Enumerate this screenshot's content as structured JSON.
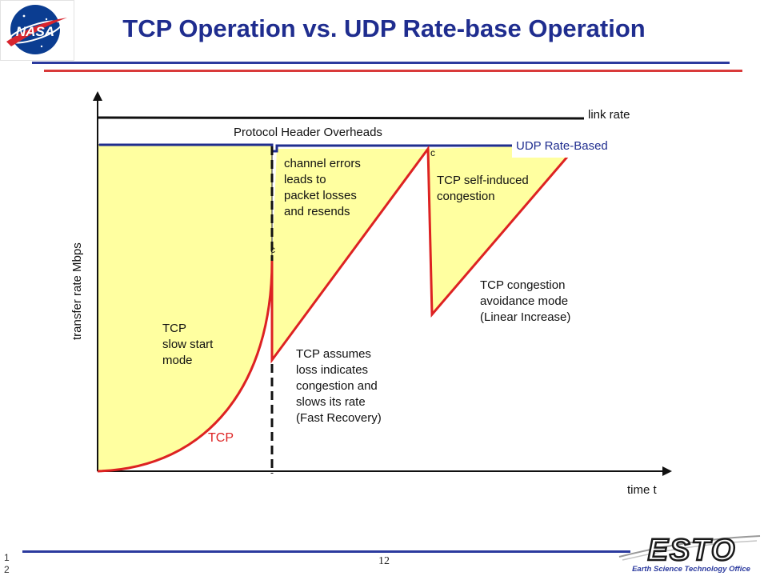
{
  "title": "TCP Operation vs. UDP Rate-base Operation",
  "labels": {
    "link_rate": "link rate",
    "header_overheads": "Protocol Header Overheads",
    "udp": "UDP Rate-Based",
    "channel_errors": [
      "channel errors",
      "leads to",
      "packet losses",
      "and resends"
    ],
    "self_induced": [
      "TCP self-induced",
      "congestion"
    ],
    "congestion_avoidance": [
      "TCP congestion",
      "avoidance mode",
      "(Linear Increase)"
    ],
    "slow_start": [
      "TCP",
      "slow start",
      "mode"
    ],
    "fast_recovery": [
      "TCP assumes",
      "loss indicates",
      "congestion and",
      "slows its rate",
      "(Fast Recovery)"
    ],
    "tcp": "TCP",
    "marker1": "c",
    "marker2": "c",
    "x_axis": "time t",
    "y_axis": "transfer rate Mbps"
  },
  "footer": {
    "page_number": "12",
    "slide_number": [
      "1",
      "2"
    ],
    "esto_logo": "ESTO",
    "esto_tagline": "Earth Science Technology Office"
  },
  "logos": {
    "nasa": "NASA"
  },
  "colors": {
    "title": "#1f2d8f",
    "fill": "#ffffa0",
    "tcp_curve": "#dd2222",
    "udp": "#1f2d8f",
    "rule_blue": "#2b3a9e",
    "rule_red": "#d93a3a"
  }
}
